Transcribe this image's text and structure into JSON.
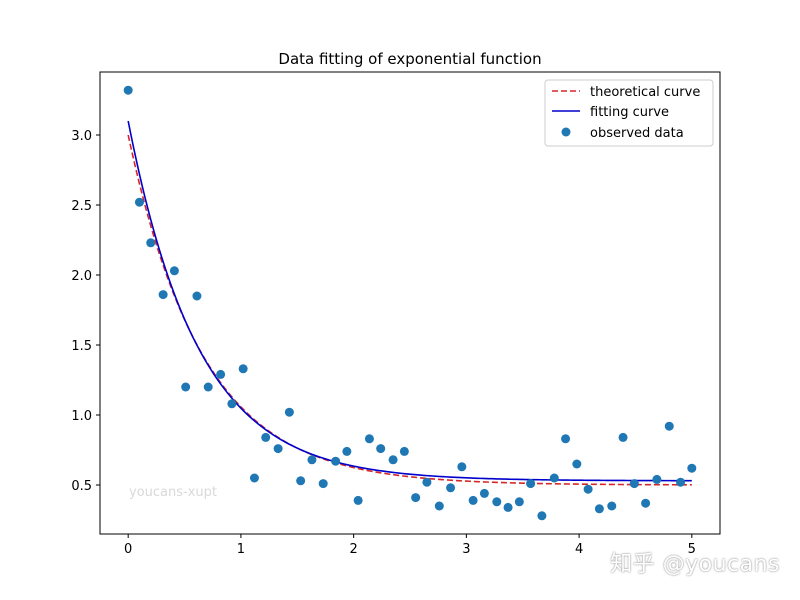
{
  "chart_data": {
    "type": "scatter",
    "title": "Data fitting of exponential function",
    "xlabel": "",
    "ylabel": "",
    "xlim": [
      -0.25,
      5.25
    ],
    "ylim": [
      0.15,
      3.45
    ],
    "xticks": [
      0,
      1,
      2,
      3,
      4,
      5
    ],
    "yticks": [
      0.5,
      1.0,
      1.5,
      2.0,
      2.5,
      3.0
    ],
    "xtick_labels": [
      "0",
      "1",
      "2",
      "3",
      "4",
      "5"
    ],
    "ytick_labels": [
      "0.5",
      "1.0",
      "1.5",
      "2.0",
      "2.5",
      "3.0"
    ],
    "grid": false,
    "legend_position": "top-right",
    "series": [
      {
        "name": "theoretical curve",
        "kind": "line",
        "style": "dashed",
        "color": "#d62728",
        "function": {
          "a": 2.5,
          "b": 1.5,
          "c": 0.5
        }
      },
      {
        "name": "fitting curve",
        "kind": "line",
        "style": "solid",
        "color": "#0000cc",
        "function": {
          "a": 2.57,
          "b": 1.6,
          "c": 0.53
        }
      },
      {
        "name": "observed data",
        "kind": "scatter",
        "color": "#1f77b4",
        "points": [
          [
            0.0,
            3.32
          ],
          [
            0.1,
            2.52
          ],
          [
            0.2,
            2.23
          ],
          [
            0.31,
            1.86
          ],
          [
            0.41,
            2.03
          ],
          [
            0.51,
            1.2
          ],
          [
            0.61,
            1.85
          ],
          [
            0.71,
            1.2
          ],
          [
            0.82,
            1.29
          ],
          [
            0.92,
            1.08
          ],
          [
            1.02,
            1.33
          ],
          [
            1.12,
            0.55
          ],
          [
            1.22,
            0.84
          ],
          [
            1.33,
            0.76
          ],
          [
            1.43,
            1.02
          ],
          [
            1.53,
            0.53
          ],
          [
            1.63,
            0.68
          ],
          [
            1.73,
            0.51
          ],
          [
            1.84,
            0.67
          ],
          [
            1.94,
            0.74
          ],
          [
            2.04,
            0.39
          ],
          [
            2.14,
            0.83
          ],
          [
            2.24,
            0.76
          ],
          [
            2.35,
            0.68
          ],
          [
            2.45,
            0.74
          ],
          [
            2.55,
            0.41
          ],
          [
            2.65,
            0.52
          ],
          [
            2.76,
            0.35
          ],
          [
            2.86,
            0.48
          ],
          [
            2.96,
            0.63
          ],
          [
            3.06,
            0.39
          ],
          [
            3.16,
            0.44
          ],
          [
            3.27,
            0.38
          ],
          [
            3.37,
            0.34
          ],
          [
            3.47,
            0.38
          ],
          [
            3.57,
            0.51
          ],
          [
            3.67,
            0.28
          ],
          [
            3.78,
            0.55
          ],
          [
            3.88,
            0.83
          ],
          [
            3.98,
            0.65
          ],
          [
            4.08,
            0.47
          ],
          [
            4.18,
            0.33
          ],
          [
            4.29,
            0.35
          ],
          [
            4.39,
            0.84
          ],
          [
            4.49,
            0.51
          ],
          [
            4.59,
            0.37
          ],
          [
            4.69,
            0.54
          ],
          [
            4.8,
            0.92
          ],
          [
            4.9,
            0.52
          ],
          [
            5.0,
            0.62
          ]
        ]
      }
    ],
    "watermark": "youcans-xupt"
  },
  "corner_watermark": "知乎 @youcans"
}
